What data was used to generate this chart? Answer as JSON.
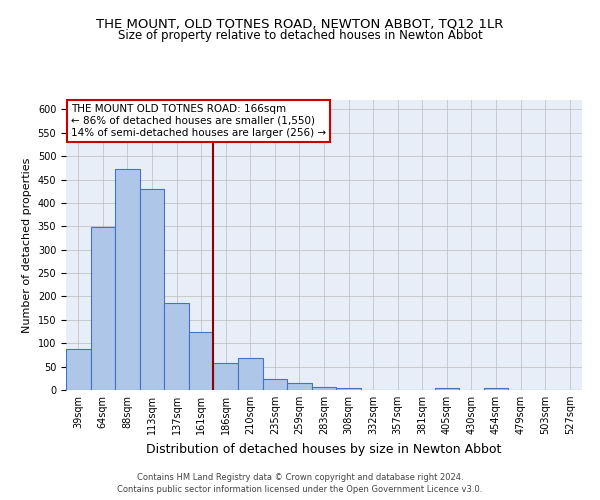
{
  "title": "THE MOUNT, OLD TOTNES ROAD, NEWTON ABBOT, TQ12 1LR",
  "subtitle": "Size of property relative to detached houses in Newton Abbot",
  "xlabel": "Distribution of detached houses by size in Newton Abbot",
  "ylabel": "Number of detached properties",
  "bar_labels": [
    "39sqm",
    "64sqm",
    "88sqm",
    "113sqm",
    "137sqm",
    "161sqm",
    "186sqm",
    "210sqm",
    "235sqm",
    "259sqm",
    "283sqm",
    "308sqm",
    "332sqm",
    "357sqm",
    "381sqm",
    "405sqm",
    "430sqm",
    "454sqm",
    "479sqm",
    "503sqm",
    "527sqm"
  ],
  "bar_values": [
    88,
    348,
    473,
    430,
    185,
    125,
    57,
    68,
    24,
    14,
    7,
    5,
    0,
    0,
    0,
    5,
    0,
    5,
    0,
    0,
    0
  ],
  "bar_color": "#aec6e8",
  "bar_edge_color": "#4472c4",
  "vline_x": 5.5,
  "vline_color": "#8b0000",
  "ylim": [
    0,
    620
  ],
  "yticks": [
    0,
    50,
    100,
    150,
    200,
    250,
    300,
    350,
    400,
    450,
    500,
    550,
    600
  ],
  "annotation_title": "THE MOUNT OLD TOTNES ROAD: 166sqm",
  "annotation_line1": "← 86% of detached houses are smaller (1,550)",
  "annotation_line2": "14% of semi-detached houses are larger (256) →",
  "annotation_box_color": "#ffffff",
  "annotation_edge_color": "#cc0000",
  "footer_line1": "Contains HM Land Registry data © Crown copyright and database right 2024.",
  "footer_line2": "Contains public sector information licensed under the Open Government Licence v3.0.",
  "bg_color": "#e8eef8",
  "grid_color": "#bbbbbb",
  "title_fontsize": 9.5,
  "subtitle_fontsize": 8.5,
  "ylabel_fontsize": 8,
  "xlabel_fontsize": 9,
  "footer_fontsize": 6,
  "tick_fontsize": 7,
  "annot_fontsize": 7.5
}
